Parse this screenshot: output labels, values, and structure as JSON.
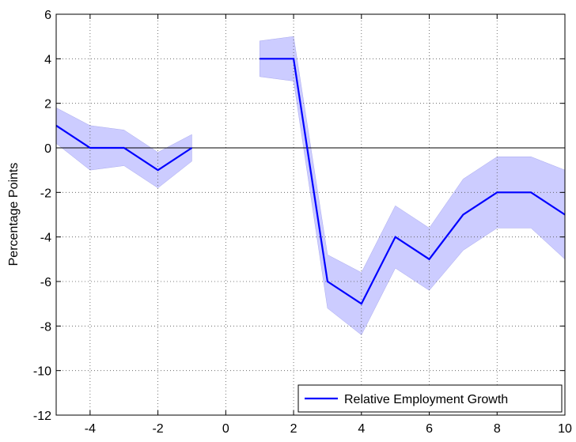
{
  "chart_data": {
    "type": "line",
    "y_label": "Percentage Points",
    "x": [
      -5,
      -4,
      -3,
      -2,
      -1,
      0,
      1,
      2,
      3,
      4,
      5,
      6,
      7,
      8,
      9,
      10
    ],
    "series": [
      {
        "name": "Relative Employment Growth",
        "color": "#0000ff",
        "band_color": "#ccccff",
        "values": [
          1,
          0,
          0,
          -1,
          0,
          null,
          4,
          4,
          -6,
          -7,
          -4,
          -5,
          -3,
          -2,
          -2,
          -3
        ],
        "lower": [
          0.2,
          -1,
          -0.8,
          -1.8,
          -0.6,
          null,
          3.2,
          3,
          -7.2,
          -8.4,
          -5.4,
          -6.4,
          -4.6,
          -3.6,
          -3.6,
          -5
        ],
        "upper": [
          1.8,
          1,
          0.8,
          -0.2,
          0.6,
          null,
          4.8,
          5,
          -4.8,
          -5.6,
          -2.6,
          -3.6,
          -1.4,
          -0.4,
          -0.4,
          -1
        ]
      }
    ],
    "xlim": [
      -5,
      10
    ],
    "ylim": [
      -12,
      6
    ],
    "xticks": [
      -4,
      -2,
      0,
      2,
      4,
      6,
      8,
      10
    ],
    "yticks": [
      -12,
      -10,
      -8,
      -6,
      -4,
      -2,
      0,
      2,
      4,
      6
    ],
    "hline": 0,
    "grid": true,
    "legend": "lower-right"
  }
}
